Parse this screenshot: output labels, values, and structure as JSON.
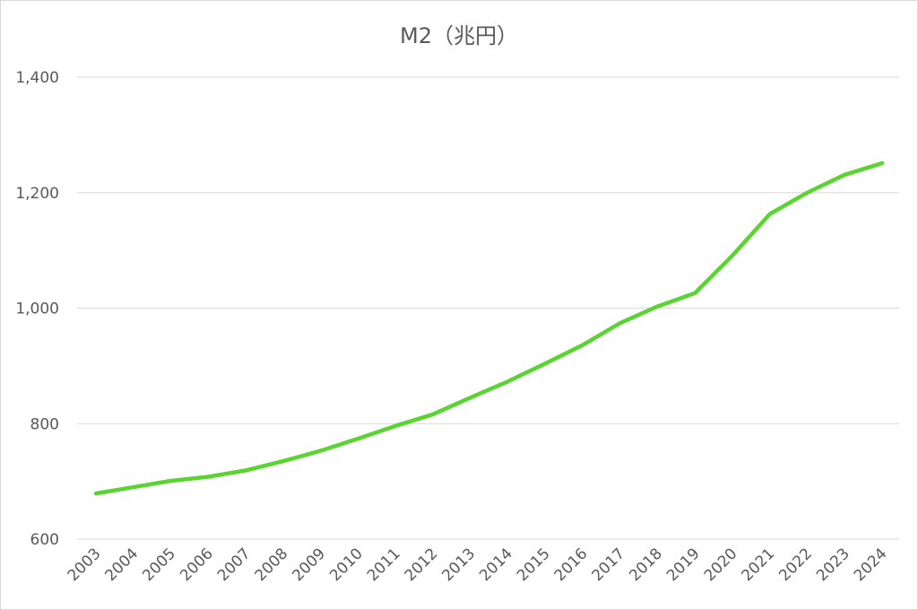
{
  "chart_data": {
    "type": "line",
    "title": "M2（兆円）",
    "xlabel": "",
    "ylabel": "",
    "categories": [
      "2003",
      "2004",
      "2005",
      "2006",
      "2007",
      "2008",
      "2009",
      "2010",
      "2011",
      "2012",
      "2013",
      "2014",
      "2015",
      "2016",
      "2017",
      "2018",
      "2019",
      "2020",
      "2021",
      "2022",
      "2023",
      "2024"
    ],
    "series": [
      {
        "values": [
          679,
          690,
          701,
          708,
          719,
          735,
          753,
          774,
          796,
          816,
          845,
          873,
          904,
          936,
          974,
          1003,
          1026,
          1091,
          1163,
          1200,
          1231,
          1251
        ],
        "color": "#5ad431"
      }
    ],
    "ylim": [
      600,
      1400
    ],
    "yticks": [
      "600",
      "800",
      "1,000",
      "1,200",
      "1,400"
    ],
    "ytick_values": [
      600,
      800,
      1000,
      1200,
      1400
    ],
    "grid": true,
    "legend": "none"
  }
}
